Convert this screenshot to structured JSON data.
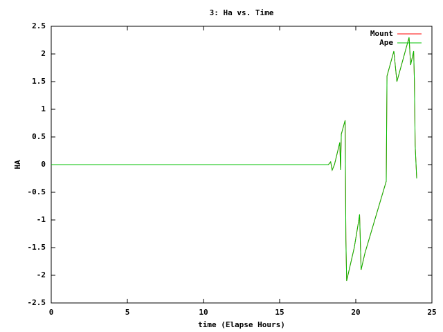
{
  "chart_data": {
    "type": "line",
    "title": "3: Ha vs. Time",
    "x_label": "time (Elapse Hours)",
    "y_label": "HA",
    "xlim": [
      0,
      25
    ],
    "xticks": [
      0,
      5,
      10,
      15,
      20,
      25
    ],
    "ylim": [
      -2.5,
      2.5
    ],
    "yticks": [
      -2.5,
      -2,
      -1.5,
      -1,
      -0.5,
      0,
      0.5,
      1,
      1.5,
      2,
      2.5
    ],
    "legend": "top-right",
    "x": [
      0,
      18.2,
      18.35,
      18.45,
      18.6,
      18.95,
      19.0,
      19.05,
      19.3,
      19.35,
      19.4,
      19.9,
      20.2,
      20.25,
      20.35,
      20.6,
      22.0,
      22.05,
      22.5,
      22.7,
      22.9,
      23.45,
      23.5,
      23.6,
      23.8,
      23.85,
      23.9,
      24.0
    ],
    "series": [
      {
        "name": "Mount",
        "color": "#ff0000",
        "values": [
          0,
          0,
          0.05,
          -0.1,
          0,
          0.4,
          -0.1,
          0.55,
          0.8,
          -1.35,
          -2.1,
          -1.5,
          -1.0,
          -0.9,
          -1.9,
          -1.6,
          -0.3,
          1.6,
          2.05,
          1.5,
          1.7,
          2.25,
          2.3,
          1.8,
          2.05,
          1.5,
          0.35,
          -0.25
        ]
      },
      {
        "name": "Ape",
        "color": "#00c000",
        "values": [
          0,
          0,
          0.05,
          -0.1,
          0,
          0.4,
          -0.1,
          0.55,
          0.8,
          -1.35,
          -2.1,
          -1.5,
          -1.0,
          -0.9,
          -1.9,
          -1.6,
          -0.3,
          1.6,
          2.05,
          1.5,
          1.7,
          2.25,
          2.3,
          1.8,
          2.05,
          1.5,
          0.35,
          -0.25
        ]
      }
    ]
  }
}
